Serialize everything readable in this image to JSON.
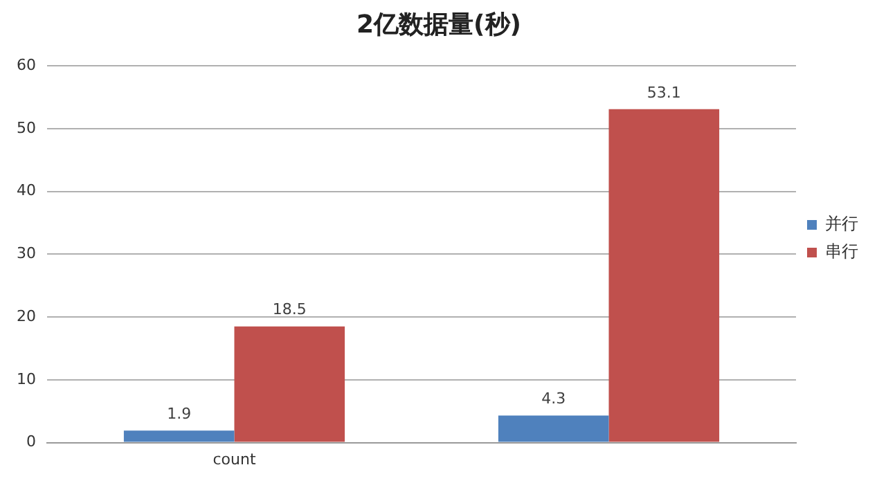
{
  "chart_data": {
    "type": "bar",
    "title": "2亿数据量(秒)",
    "categories": [
      "count",
      null
    ],
    "series": [
      {
        "name": "并行",
        "color": "#4f81bd",
        "values": [
          1.9,
          4.3
        ]
      },
      {
        "name": "串行",
        "color": "#c0504d",
        "values": [
          18.5,
          53.1
        ]
      }
    ],
    "ylim": [
      0,
      60
    ],
    "yticks": [
      0,
      10,
      20,
      30,
      40,
      50,
      60
    ],
    "grid": "y",
    "legend": "right",
    "data_labels": true
  }
}
